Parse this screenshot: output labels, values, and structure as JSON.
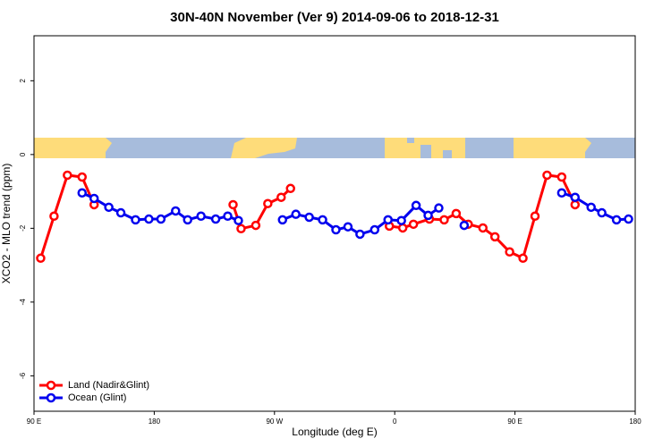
{
  "chart_data": {
    "type": "line",
    "title": "30N-40N November (Ver 9)   2014-09-06 to 2018-12-31",
    "x_label": "Longitude (deg E)",
    "y_label": "XCO2 - MLO trend (ppm)",
    "xlim": [
      90,
      540
    ],
    "ylim": [
      -6.96,
      3.22
    ],
    "xticks": [
      {
        "value": 90,
        "label": "90 E"
      },
      {
        "value": 180,
        "label": "180"
      },
      {
        "value": 270,
        "label": "90 W"
      },
      {
        "value": 360,
        "label": "0"
      },
      {
        "value": 450,
        "label": "90 E"
      },
      {
        "value": 540,
        "label": "180"
      }
    ],
    "yticks": [
      2,
      0,
      -2,
      -4,
      -6
    ],
    "legend": "lower left",
    "series": [
      {
        "name": "Land (Nadir&Glint)",
        "color": "#ff0000",
        "x": [
          95,
          105,
          115,
          126,
          135,
          null,
          239,
          245,
          256,
          265,
          275,
          282,
          null,
          356,
          366,
          374,
          386,
          397,
          406,
          415,
          426,
          435,
          446,
          456,
          465,
          474,
          485,
          495
        ],
        "values": [
          -2.81,
          -1.67,
          -0.56,
          -0.61,
          -1.36,
          null,
          -1.36,
          -2.01,
          -1.92,
          -1.33,
          -1.16,
          -0.92,
          null,
          -1.94,
          -1.99,
          -1.89,
          -1.75,
          -1.77,
          -1.6,
          -1.89,
          -1.99,
          -2.23,
          -2.64,
          -2.81,
          -1.67,
          -0.56,
          -0.61,
          -1.36
        ]
      },
      {
        "name": "Ocean (Glint)",
        "color": "#0000ee",
        "x": [
          126,
          135,
          146,
          155,
          166,
          176,
          185,
          196,
          205,
          215,
          226,
          235,
          243,
          null,
          276,
          286,
          296,
          306,
          316,
          325,
          334,
          345,
          355,
          365,
          376,
          385,
          393,
          null,
          412,
          null,
          485,
          495,
          507,
          515,
          526,
          535
        ],
        "values": [
          -1.04,
          -1.19,
          -1.43,
          -1.58,
          -1.77,
          -1.75,
          -1.75,
          -1.53,
          -1.77,
          -1.67,
          -1.75,
          -1.67,
          -1.79,
          null,
          -1.77,
          -1.62,
          -1.7,
          -1.77,
          -2.04,
          -1.96,
          -2.16,
          -2.04,
          -1.77,
          -1.79,
          -1.38,
          -1.65,
          -1.45,
          null,
          -1.92,
          null,
          -1.04,
          -1.16,
          -1.43,
          -1.58,
          -1.77,
          -1.75
        ]
      }
    ]
  }
}
